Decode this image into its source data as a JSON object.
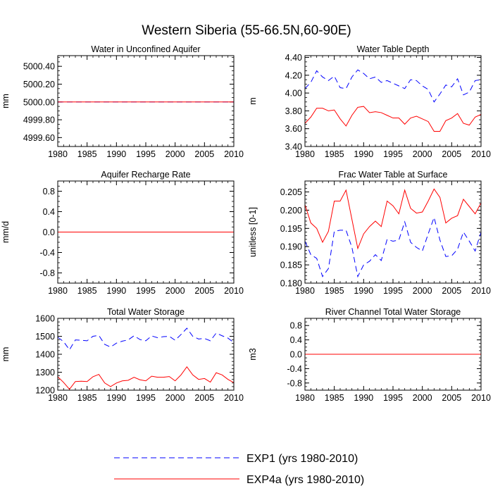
{
  "figure": {
    "title": "Western Siberia (55-66.5N,60-90E)",
    "legend": [
      {
        "label": "EXP1 (yrs 1980-2010)",
        "color": "#0000ff",
        "dash": "dashed"
      },
      {
        "label": "EXP4a (yrs 1980-2010)",
        "color": "#ff0000",
        "dash": "solid"
      }
    ]
  },
  "chart_data": [
    {
      "type": "line",
      "title": "Water in Unconfined Aquifer",
      "ylabel": "mm",
      "xlabel": "",
      "xlim": [
        1980,
        2010
      ],
      "ylim": [
        4999.5,
        5000.52
      ],
      "yticks": [
        4999.6,
        4999.8,
        5000.0,
        5000.2,
        5000.4
      ],
      "ytick_labels": [
        "4999.60",
        "4999.80",
        "5000.00",
        "5000.20",
        "5000.40"
      ],
      "xticks": [
        1980,
        1985,
        1990,
        1995,
        2000,
        2005,
        2010
      ],
      "minor_y": 0.05,
      "x_start": 1980,
      "series": [
        {
          "name": "EXP1 (yrs 1980-2010)",
          "color": "#0000ff",
          "dash": "dashed",
          "values": [
            5000,
            5000,
            5000,
            5000,
            5000,
            5000,
            5000,
            5000,
            5000,
            5000,
            5000,
            5000,
            5000,
            5000,
            5000,
            5000,
            5000,
            5000,
            5000,
            5000,
            5000,
            5000,
            5000,
            5000,
            5000,
            5000,
            5000,
            5000,
            5000,
            5000,
            5000
          ]
        },
        {
          "name": "EXP4a (yrs 1980-2010)",
          "color": "#ff0000",
          "dash": "solid",
          "values": [
            5000,
            5000,
            5000,
            5000,
            5000,
            5000,
            5000,
            5000,
            5000,
            5000,
            5000,
            5000,
            5000,
            5000,
            5000,
            5000,
            5000,
            5000,
            5000,
            5000,
            5000,
            5000,
            5000,
            5000,
            5000,
            5000,
            5000,
            5000,
            5000,
            5000,
            5000
          ]
        }
      ]
    },
    {
      "type": "line",
      "title": "Water Table Depth",
      "ylabel": "m",
      "xlabel": "",
      "xlim": [
        1980,
        2010
      ],
      "ylim": [
        3.4,
        4.42
      ],
      "yticks": [
        3.4,
        3.6,
        3.8,
        4.0,
        4.2,
        4.4
      ],
      "ytick_labels": [
        "3.40",
        "3.60",
        "3.80",
        "4.00",
        "4.20",
        "4.40"
      ],
      "xticks": [
        1980,
        1985,
        1990,
        1995,
        2000,
        2005,
        2010
      ],
      "minor_y": 0.05,
      "x_start": 1980,
      "series": [
        {
          "name": "EXP1 (yrs 1980-2010)",
          "color": "#0000ff",
          "dash": "dashed",
          "values": [
            4.05,
            4.12,
            4.25,
            4.18,
            4.14,
            4.19,
            4.06,
            4.05,
            4.18,
            4.26,
            4.22,
            4.16,
            4.18,
            4.12,
            4.14,
            4.11,
            4.08,
            4.05,
            4.15,
            4.14,
            4.08,
            4.04,
            3.9,
            3.99,
            4.09,
            4.07,
            4.16,
            3.98,
            4.01,
            4.14,
            4.15
          ]
        },
        {
          "name": "EXP4a (yrs 1980-2010)",
          "color": "#ff0000",
          "dash": "solid",
          "values": [
            3.66,
            3.73,
            3.83,
            3.83,
            3.8,
            3.81,
            3.71,
            3.63,
            3.75,
            3.84,
            3.85,
            3.78,
            3.79,
            3.78,
            3.75,
            3.72,
            3.72,
            3.65,
            3.72,
            3.74,
            3.71,
            3.68,
            3.57,
            3.57,
            3.69,
            3.72,
            3.77,
            3.66,
            3.64,
            3.73,
            3.76
          ]
        }
      ]
    },
    {
      "type": "line",
      "title": "Aquifer Recharge Rate",
      "ylabel": "mm/d",
      "xlabel": "",
      "xlim": [
        1980,
        2010
      ],
      "ylim": [
        -1.0,
        1.0
      ],
      "yticks": [
        -0.8,
        -0.4,
        0.0,
        0.4,
        0.8
      ],
      "ytick_labels": [
        "-0.8",
        "-0.4",
        "0.0",
        "0.4",
        "0.8"
      ],
      "xticks": [
        1980,
        1985,
        1990,
        1995,
        2000,
        2005,
        2010
      ],
      "minor_y": 0.1,
      "x_start": 1980,
      "series": [
        {
          "name": "EXP1 (yrs 1980-2010)",
          "color": "#0000ff",
          "dash": "dashed",
          "values": [
            0,
            0,
            0,
            0,
            0,
            0,
            0,
            0,
            0,
            0,
            0,
            0,
            0,
            0,
            0,
            0,
            0,
            0,
            0,
            0,
            0,
            0,
            0,
            0,
            0,
            0,
            0,
            0,
            0,
            0,
            0
          ]
        },
        {
          "name": "EXP4a (yrs 1980-2010)",
          "color": "#ff0000",
          "dash": "solid",
          "values": [
            0,
            0,
            0,
            0,
            0,
            0,
            0,
            0,
            0,
            0,
            0,
            0,
            0,
            0,
            0,
            0,
            0,
            0,
            0,
            0,
            0,
            0,
            0,
            0,
            0,
            0,
            0,
            0,
            0,
            0,
            0
          ]
        }
      ]
    },
    {
      "type": "line",
      "title": "Frac Water Table at Surface",
      "ylabel": "unitless [0-1]",
      "xlabel": "",
      "xlim": [
        1980,
        2010
      ],
      "ylim": [
        0.18,
        0.208
      ],
      "yticks": [
        0.18,
        0.185,
        0.19,
        0.195,
        0.2,
        0.205
      ],
      "ytick_labels": [
        "0.180",
        "0.185",
        "0.190",
        "0.195",
        "0.200",
        "0.205"
      ],
      "xticks": [
        1980,
        1985,
        1990,
        1995,
        2000,
        2005,
        2010
      ],
      "minor_y": 0.001,
      "x_start": 1980,
      "series": [
        {
          "name": "EXP1 (yrs 1980-2010)",
          "color": "#0000ff",
          "dash": "dashed",
          "values": [
            0.1915,
            0.1878,
            0.1868,
            0.1818,
            0.184,
            0.1942,
            0.1945,
            0.1945,
            0.1898,
            0.1818,
            0.185,
            0.186,
            0.1878,
            0.1862,
            0.192,
            0.1915,
            0.1918,
            0.1968,
            0.1912,
            0.1898,
            0.1888,
            0.1935,
            0.198,
            0.1918,
            0.1873,
            0.1875,
            0.1893,
            0.194,
            0.1915,
            0.1888,
            0.194
          ]
        },
        {
          "name": "EXP4a (yrs 1980-2010)",
          "color": "#ff0000",
          "dash": "solid",
          "values": [
            0.2015,
            0.1965,
            0.195,
            0.1912,
            0.1942,
            0.2025,
            0.2025,
            0.2055,
            0.1975,
            0.1895,
            0.1935,
            0.1955,
            0.197,
            0.1955,
            0.2025,
            0.2012,
            0.199,
            0.2055,
            0.2005,
            0.1992,
            0.1995,
            0.2025,
            0.2058,
            0.2035,
            0.1965,
            0.1978,
            0.1985,
            0.203,
            0.201,
            0.199,
            0.202
          ]
        }
      ]
    },
    {
      "type": "line",
      "title": "Total Water Storage",
      "ylabel": "mm",
      "xlabel": "",
      "xlim": [
        1980,
        2010
      ],
      "ylim": [
        1200,
        1600
      ],
      "yticks": [
        1200,
        1300,
        1400,
        1500,
        1600
      ],
      "ytick_labels": [
        "1200",
        "1300",
        "1400",
        "1500",
        "1600"
      ],
      "xticks": [
        1980,
        1985,
        1990,
        1995,
        2000,
        2005,
        2010
      ],
      "minor_y": 20,
      "x_start": 1980,
      "series": [
        {
          "name": "EXP1 (yrs 1980-2010)",
          "color": "#0000ff",
          "dash": "dashed",
          "values": [
            1495,
            1470,
            1425,
            1480,
            1478,
            1475,
            1500,
            1505,
            1455,
            1440,
            1462,
            1473,
            1480,
            1503,
            1482,
            1475,
            1502,
            1492,
            1498,
            1500,
            1478,
            1510,
            1545,
            1500,
            1485,
            1488,
            1475,
            1518,
            1503,
            1490,
            1465
          ]
        },
        {
          "name": "EXP4a (yrs 1980-2010)",
          "color": "#ff0000",
          "dash": "solid",
          "values": [
            1275,
            1243,
            1205,
            1248,
            1250,
            1248,
            1275,
            1288,
            1240,
            1220,
            1240,
            1252,
            1255,
            1272,
            1258,
            1252,
            1278,
            1272,
            1272,
            1276,
            1252,
            1285,
            1330,
            1285,
            1260,
            1265,
            1245,
            1297,
            1285,
            1260,
            1242
          ]
        }
      ]
    },
    {
      "type": "line",
      "title": "River Channel Total Water Storage",
      "ylabel": "m3",
      "xlabel": "",
      "xlim": [
        1980,
        2010
      ],
      "ylim": [
        -1.0,
        1.0
      ],
      "yticks": [
        -0.8,
        -0.4,
        0.0,
        0.4,
        0.8
      ],
      "ytick_labels": [
        "-0.8",
        "-0.4",
        "0.0",
        "0.4",
        "0.8"
      ],
      "xticks": [
        1980,
        1985,
        1990,
        1995,
        2000,
        2005,
        2010
      ],
      "minor_y": 0.1,
      "x_start": 1980,
      "series": [
        {
          "name": "EXP1 (yrs 1980-2010)",
          "color": "#0000ff",
          "dash": "dashed",
          "values": [
            0,
            0,
            0,
            0,
            0,
            0,
            0,
            0,
            0,
            0,
            0,
            0,
            0,
            0,
            0,
            0,
            0,
            0,
            0,
            0,
            0,
            0,
            0,
            0,
            0,
            0,
            0,
            0,
            0,
            0,
            0
          ]
        },
        {
          "name": "EXP4a (yrs 1980-2010)",
          "color": "#ff0000",
          "dash": "solid",
          "values": [
            0,
            0,
            0,
            0,
            0,
            0,
            0,
            0,
            0,
            0,
            0,
            0,
            0,
            0,
            0,
            0,
            0,
            0,
            0,
            0,
            0,
            0,
            0,
            0,
            0,
            0,
            0,
            0,
            0,
            0,
            0
          ]
        }
      ]
    }
  ]
}
